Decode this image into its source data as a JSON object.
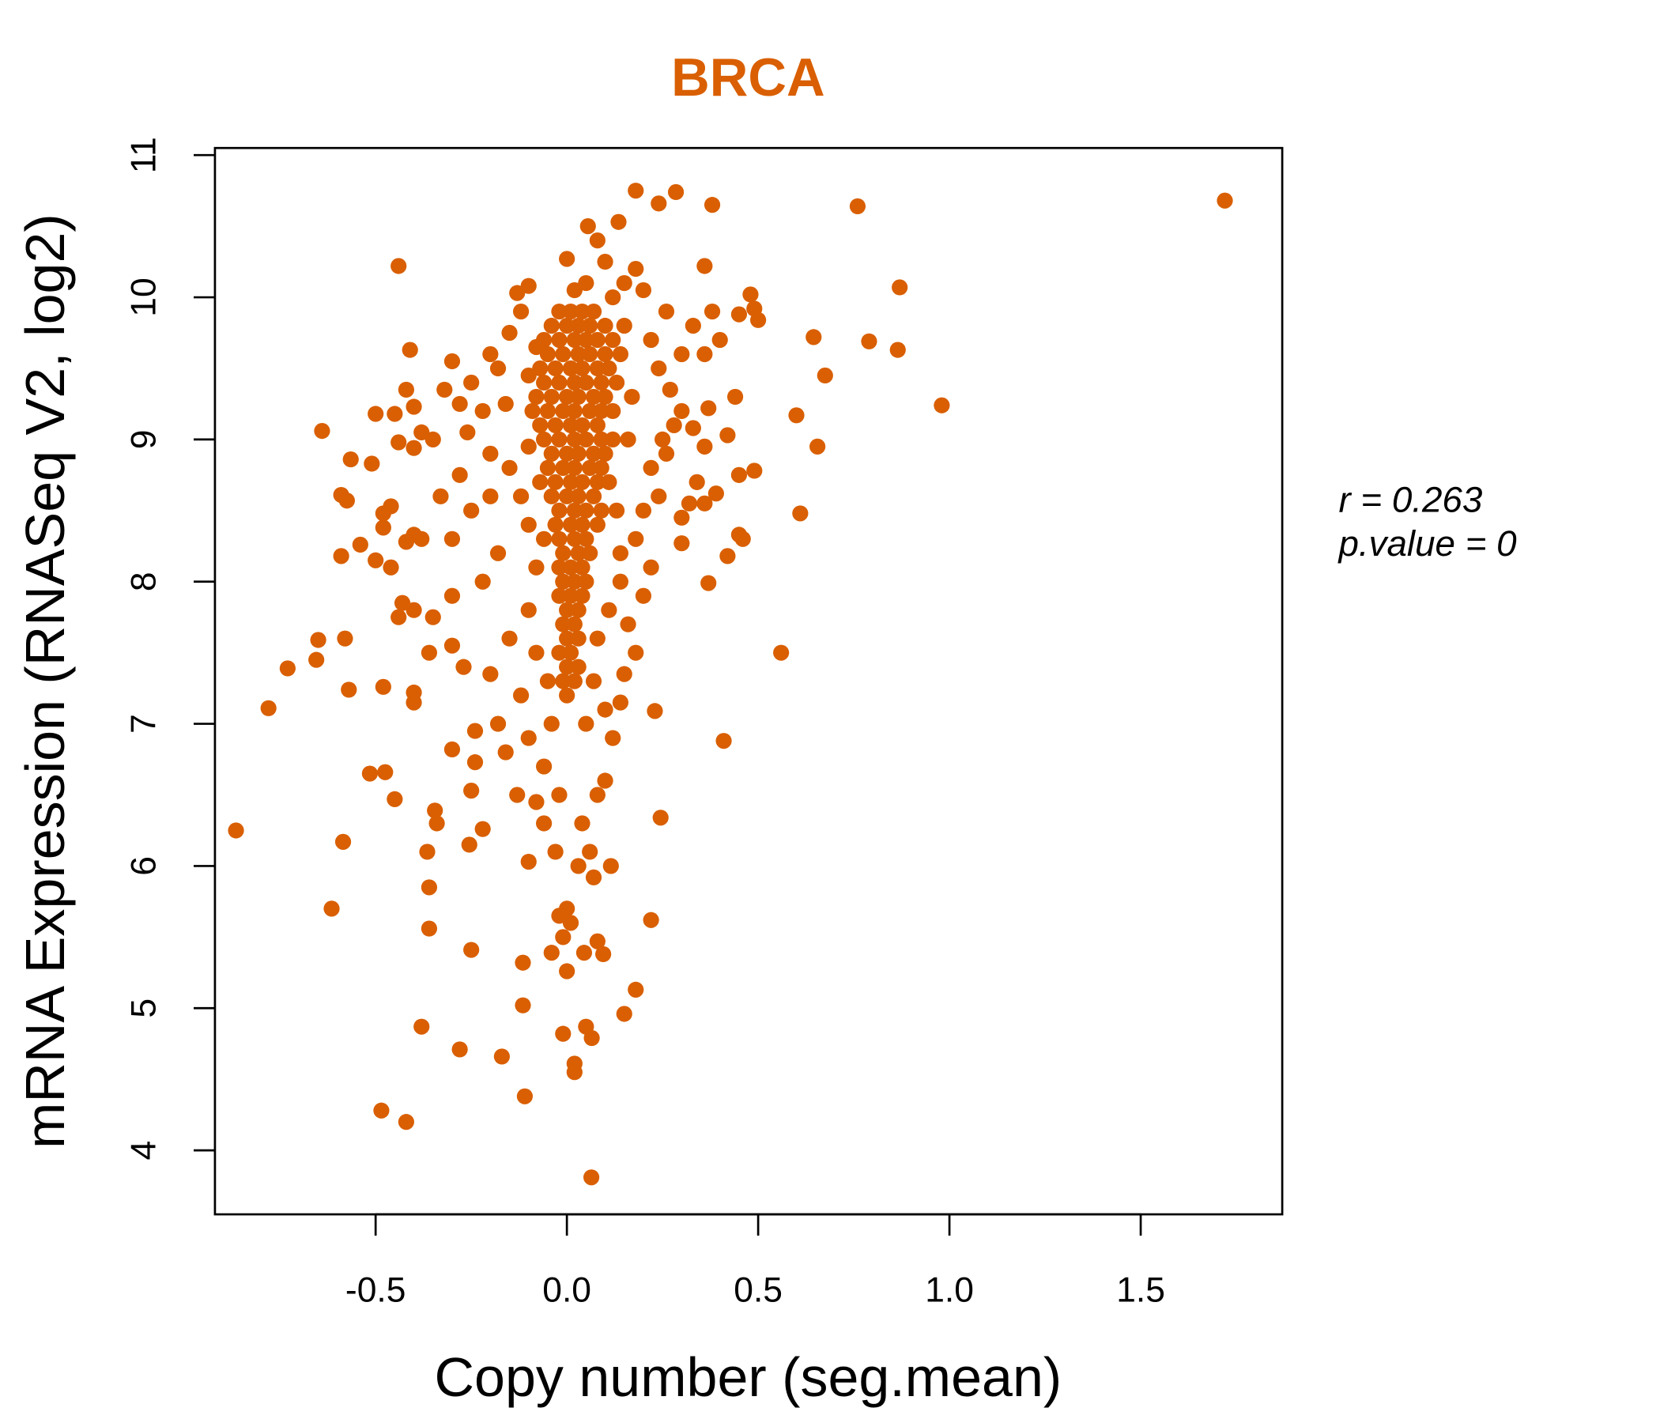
{
  "chart_data": {
    "type": "scatter",
    "title": "BRCA",
    "xlabel": "Copy number (seg.mean)",
    "ylabel": "mRNA Expression (RNASeq V2, log2)",
    "xlim": [
      -0.92,
      1.87
    ],
    "ylim": [
      3.55,
      11.05
    ],
    "x_ticks": [
      "-0.5",
      "0.0",
      "0.5",
      "1.0",
      "1.5"
    ],
    "x_tick_values": [
      -0.5,
      0,
      0.5,
      1.0,
      1.5
    ],
    "y_ticks": [
      "4",
      "5",
      "6",
      "7",
      "8",
      "9",
      "10",
      "11"
    ],
    "y_tick_values": [
      4,
      5,
      6,
      7,
      8,
      9,
      10,
      11
    ],
    "color": "#D95F02",
    "annotations": {
      "r": "r = 0.263",
      "p": "p.value = 0"
    },
    "points": [
      [
        1.72,
        10.68
      ],
      [
        -0.865,
        6.25
      ],
      [
        -0.78,
        7.11
      ],
      [
        -0.73,
        7.39
      ],
      [
        -0.65,
        7.59
      ],
      [
        -0.655,
        7.45
      ],
      [
        -0.64,
        9.06
      ],
      [
        -0.615,
        5.7
      ],
      [
        -0.585,
        6.17
      ],
      [
        -0.59,
        8.18
      ],
      [
        -0.58,
        7.6
      ],
      [
        -0.57,
        7.24
      ],
      [
        -0.565,
        8.86
      ],
      [
        -0.59,
        8.61
      ],
      [
        -0.575,
        8.57
      ],
      [
        -0.54,
        8.26
      ],
      [
        -0.515,
        6.65
      ],
      [
        -0.51,
        8.83
      ],
      [
        -0.485,
        4.28
      ],
      [
        -0.48,
        7.26
      ],
      [
        -0.475,
        6.66
      ],
      [
        -0.45,
        6.47
      ],
      [
        -0.44,
        10.22
      ],
      [
        -0.42,
        4.2
      ],
      [
        -0.41,
        9.63
      ],
      [
        -0.38,
        4.87
      ],
      [
        -0.365,
        6.1
      ],
      [
        -0.36,
        5.85
      ],
      [
        -0.36,
        5.56
      ],
      [
        -0.345,
        6.39
      ],
      [
        -0.34,
        6.3
      ],
      [
        -0.28,
        4.71
      ],
      [
        -0.25,
        5.41
      ],
      [
        -0.25,
        6.53
      ],
      [
        -0.255,
        6.15
      ],
      [
        -0.22,
        6.26
      ],
      [
        -0.17,
        4.66
      ],
      [
        -0.115,
        5.32
      ],
      [
        -0.115,
        5.02
      ],
      [
        -0.11,
        4.38
      ],
      [
        -0.1,
        6.03
      ],
      [
        -0.01,
        4.82
      ],
      [
        0.0,
        5.26
      ],
      [
        0.02,
        4.55
      ],
      [
        0.02,
        4.61
      ],
      [
        0.05,
        4.87
      ],
      [
        0.065,
        4.79
      ],
      [
        0.064,
        3.81
      ],
      [
        -0.04,
        5.39
      ],
      [
        -0.01,
        5.5
      ],
      [
        0.045,
        5.39
      ],
      [
        0.08,
        5.47
      ],
      [
        0.095,
        5.38
      ],
      [
        0.15,
        4.96
      ],
      [
        0.18,
        5.13
      ],
      [
        0.22,
        5.62
      ],
      [
        0.07,
        5.92
      ],
      [
        0.115,
        6.0
      ],
      [
        0.245,
        6.34
      ],
      [
        0.23,
        7.09
      ],
      [
        0.41,
        6.88
      ],
      [
        0.56,
        7.5
      ],
      [
        0.37,
        7.99
      ],
      [
        0.61,
        8.48
      ],
      [
        0.645,
        9.72
      ],
      [
        0.79,
        9.69
      ],
      [
        0.675,
        9.45
      ],
      [
        0.6,
        9.17
      ],
      [
        0.655,
        8.95
      ],
      [
        0.865,
        9.63
      ],
      [
        0.87,
        10.07
      ],
      [
        0.98,
        9.24
      ],
      [
        0.76,
        10.64
      ],
      [
        0.38,
        10.65
      ],
      [
        0.285,
        10.74
      ],
      [
        0.24,
        10.66
      ],
      [
        0.18,
        10.75
      ],
      [
        0.135,
        10.53
      ],
      [
        0.055,
        10.5
      ],
      [
        0.0,
        10.27
      ],
      [
        0.48,
        10.02
      ],
      [
        -0.02,
        9.9
      ],
      [
        0.01,
        9.9
      ],
      [
        0.04,
        9.9
      ],
      [
        0.07,
        9.9
      ],
      [
        -0.04,
        9.8
      ],
      [
        0.0,
        9.8
      ],
      [
        0.03,
        9.8
      ],
      [
        0.06,
        9.8
      ],
      [
        0.1,
        9.8
      ],
      [
        -0.06,
        9.7
      ],
      [
        -0.02,
        9.7
      ],
      [
        0.02,
        9.7
      ],
      [
        0.05,
        9.7
      ],
      [
        0.08,
        9.7
      ],
      [
        0.12,
        9.7
      ],
      [
        -0.05,
        9.6
      ],
      [
        -0.01,
        9.6
      ],
      [
        0.03,
        9.6
      ],
      [
        0.06,
        9.6
      ],
      [
        0.1,
        9.6
      ],
      [
        0.14,
        9.6
      ],
      [
        -0.07,
        9.5
      ],
      [
        -0.03,
        9.5
      ],
      [
        0.01,
        9.5
      ],
      [
        0.04,
        9.5
      ],
      [
        0.08,
        9.5
      ],
      [
        0.11,
        9.5
      ],
      [
        -0.06,
        9.4
      ],
      [
        -0.02,
        9.4
      ],
      [
        0.02,
        9.4
      ],
      [
        0.05,
        9.4
      ],
      [
        0.09,
        9.4
      ],
      [
        0.13,
        9.4
      ],
      [
        -0.08,
        9.3
      ],
      [
        -0.04,
        9.3
      ],
      [
        0.0,
        9.3
      ],
      [
        0.03,
        9.3
      ],
      [
        0.07,
        9.3
      ],
      [
        0.1,
        9.3
      ],
      [
        -0.05,
        9.2
      ],
      [
        -0.01,
        9.2
      ],
      [
        0.02,
        9.2
      ],
      [
        0.06,
        9.2
      ],
      [
        0.09,
        9.2
      ],
      [
        0.12,
        9.2
      ],
      [
        -0.07,
        9.1
      ],
      [
        -0.03,
        9.1
      ],
      [
        0.01,
        9.1
      ],
      [
        0.04,
        9.1
      ],
      [
        0.08,
        9.1
      ],
      [
        -0.06,
        9.0
      ],
      [
        -0.02,
        9.0
      ],
      [
        0.02,
        9.0
      ],
      [
        0.05,
        9.0
      ],
      [
        0.09,
        9.0
      ],
      [
        0.12,
        9.0
      ],
      [
        -0.04,
        8.9
      ],
      [
        0.0,
        8.9
      ],
      [
        0.03,
        8.9
      ],
      [
        0.07,
        8.9
      ],
      [
        0.1,
        8.9
      ],
      [
        -0.05,
        8.8
      ],
      [
        -0.01,
        8.8
      ],
      [
        0.02,
        8.8
      ],
      [
        0.06,
        8.8
      ],
      [
        0.09,
        8.8
      ],
      [
        -0.03,
        8.7
      ],
      [
        0.01,
        8.7
      ],
      [
        0.04,
        8.7
      ],
      [
        0.08,
        8.7
      ],
      [
        0.11,
        8.7
      ],
      [
        -0.04,
        8.6
      ],
      [
        0.0,
        8.6
      ],
      [
        0.03,
        8.6
      ],
      [
        0.07,
        8.6
      ],
      [
        -0.02,
        8.5
      ],
      [
        0.02,
        8.5
      ],
      [
        0.05,
        8.5
      ],
      [
        0.09,
        8.5
      ],
      [
        -0.03,
        8.4
      ],
      [
        0.01,
        8.4
      ],
      [
        0.04,
        8.4
      ],
      [
        0.08,
        8.4
      ],
      [
        -0.02,
        8.3
      ],
      [
        0.02,
        8.3
      ],
      [
        0.05,
        8.3
      ],
      [
        -0.01,
        8.2
      ],
      [
        0.03,
        8.2
      ],
      [
        0.06,
        8.2
      ],
      [
        -0.02,
        8.1
      ],
      [
        0.01,
        8.1
      ],
      [
        0.04,
        8.1
      ],
      [
        -0.01,
        8.0
      ],
      [
        0.02,
        8.0
      ],
      [
        0.05,
        8.0
      ],
      [
        -0.02,
        7.9
      ],
      [
        0.01,
        7.9
      ],
      [
        0.04,
        7.9
      ],
      [
        0.0,
        7.8
      ],
      [
        0.03,
        7.8
      ],
      [
        -0.01,
        7.7
      ],
      [
        0.02,
        7.7
      ],
      [
        0.0,
        7.6
      ],
      [
        0.03,
        7.6
      ],
      [
        -0.02,
        7.5
      ],
      [
        0.01,
        7.5
      ],
      [
        0.0,
        7.4
      ],
      [
        0.03,
        7.4
      ],
      [
        -0.01,
        7.3
      ],
      [
        0.02,
        7.3
      ],
      [
        0.0,
        7.2
      ],
      [
        -0.3,
        9.55
      ],
      [
        -0.32,
        9.35
      ],
      [
        -0.35,
        9.0
      ],
      [
        -0.25,
        9.4
      ],
      [
        -0.22,
        9.2
      ],
      [
        -0.18,
        9.5
      ],
      [
        -0.15,
        9.75
      ],
      [
        -0.13,
        10.03
      ],
      [
        -0.1,
        10.08
      ],
      [
        -0.12,
        9.9
      ],
      [
        -0.08,
        9.65
      ],
      [
        -0.2,
        8.9
      ],
      [
        -0.28,
        8.75
      ],
      [
        -0.33,
        8.6
      ],
      [
        -0.38,
        8.3
      ],
      [
        -0.3,
        8.3
      ],
      [
        -0.25,
        8.5
      ],
      [
        -0.2,
        8.6
      ],
      [
        -0.15,
        8.8
      ],
      [
        -0.1,
        8.95
      ],
      [
        -0.12,
        8.6
      ],
      [
        -0.18,
        8.2
      ],
      [
        -0.22,
        8.0
      ],
      [
        -0.3,
        7.9
      ],
      [
        -0.35,
        7.75
      ],
      [
        -0.4,
        7.8
      ],
      [
        -0.36,
        7.5
      ],
      [
        -0.3,
        7.55
      ],
      [
        -0.27,
        7.4
      ],
      [
        -0.2,
        7.35
      ],
      [
        -0.15,
        7.6
      ],
      [
        -0.1,
        7.8
      ],
      [
        -0.08,
        7.5
      ],
      [
        -0.12,
        7.2
      ],
      [
        -0.18,
        7.0
      ],
      [
        -0.24,
        6.95
      ],
      [
        -0.16,
        6.8
      ],
      [
        -0.1,
        6.9
      ],
      [
        -0.06,
        6.7
      ],
      [
        -0.13,
        6.5
      ],
      [
        -0.08,
        6.45
      ],
      [
        -0.06,
        6.3
      ],
      [
        -0.02,
        6.5
      ],
      [
        -0.03,
        6.1
      ],
      [
        0.0,
        5.7
      ],
      [
        -0.02,
        5.65
      ],
      [
        0.01,
        5.6
      ],
      [
        0.03,
        6.0
      ],
      [
        0.06,
        6.1
      ],
      [
        0.04,
        6.3
      ],
      [
        0.08,
        6.5
      ],
      [
        0.1,
        6.6
      ],
      [
        0.12,
        6.9
      ],
      [
        0.1,
        7.1
      ],
      [
        0.14,
        7.15
      ],
      [
        0.15,
        7.35
      ],
      [
        0.18,
        7.5
      ],
      [
        0.16,
        7.7
      ],
      [
        0.2,
        7.9
      ],
      [
        0.22,
        8.1
      ],
      [
        0.18,
        8.3
      ],
      [
        0.2,
        8.5
      ],
      [
        0.24,
        8.6
      ],
      [
        0.22,
        8.8
      ],
      [
        0.25,
        9.0
      ],
      [
        0.28,
        9.1
      ],
      [
        0.3,
        9.2
      ],
      [
        0.27,
        9.35
      ],
      [
        0.24,
        9.5
      ],
      [
        0.22,
        9.7
      ],
      [
        0.26,
        9.9
      ],
      [
        0.2,
        10.05
      ],
      [
        0.18,
        10.2
      ],
      [
        0.15,
        10.1
      ],
      [
        0.12,
        10.0
      ],
      [
        0.1,
        10.25
      ],
      [
        0.08,
        10.4
      ],
      [
        0.05,
        10.1
      ],
      [
        0.02,
        10.05
      ],
      [
        0.3,
        9.6
      ],
      [
        0.33,
        9.8
      ],
      [
        0.36,
        9.6
      ],
      [
        0.38,
        9.9
      ],
      [
        0.4,
        9.7
      ],
      [
        0.36,
        10.22
      ],
      [
        0.45,
        9.88
      ],
      [
        0.49,
        9.92
      ],
      [
        0.5,
        9.84
      ],
      [
        0.44,
        9.3
      ],
      [
        0.42,
        9.03
      ],
      [
        0.36,
        8.95
      ],
      [
        0.34,
        8.7
      ],
      [
        0.39,
        8.62
      ],
      [
        0.45,
        8.75
      ],
      [
        0.49,
        8.78
      ],
      [
        0.45,
        8.33
      ],
      [
        0.46,
        8.3
      ],
      [
        0.42,
        8.18
      ],
      [
        0.3,
        8.27
      ],
      [
        0.32,
        8.55
      ],
      [
        0.36,
        8.55
      ],
      [
        0.3,
        8.45
      ],
      [
        0.26,
        8.9
      ],
      [
        0.33,
        9.08
      ],
      [
        0.37,
        9.22
      ],
      [
        -0.45,
        9.18
      ],
      [
        -0.5,
        9.18
      ],
      [
        -0.4,
        9.23
      ],
      [
        -0.42,
        9.35
      ],
      [
        -0.38,
        9.05
      ],
      [
        -0.44,
        8.98
      ],
      [
        -0.4,
        8.94
      ],
      [
        -0.46,
        8.53
      ],
      [
        -0.48,
        8.48
      ],
      [
        -0.48,
        8.38
      ],
      [
        -0.4,
        8.33
      ],
      [
        -0.42,
        8.28
      ],
      [
        -0.46,
        8.1
      ],
      [
        -0.5,
        8.15
      ],
      [
        -0.43,
        7.85
      ],
      [
        -0.44,
        7.75
      ],
      [
        -0.4,
        7.22
      ],
      [
        -0.4,
        7.15
      ],
      [
        -0.3,
        6.82
      ],
      [
        -0.24,
        6.73
      ],
      [
        -0.06,
        8.3
      ],
      [
        -0.08,
        8.1
      ],
      [
        -0.1,
        8.4
      ],
      [
        -0.07,
        8.7
      ],
      [
        -0.09,
        9.2
      ],
      [
        0.14,
        8.2
      ],
      [
        0.13,
        8.5
      ],
      [
        0.14,
        8.0
      ],
      [
        0.11,
        7.8
      ],
      [
        0.08,
        7.6
      ],
      [
        0.07,
        7.3
      ],
      [
        0.05,
        7.0
      ],
      [
        -0.04,
        7.0
      ],
      [
        -0.05,
        7.3
      ],
      [
        0.16,
        9.0
      ],
      [
        0.17,
        9.3
      ],
      [
        0.15,
        9.8
      ],
      [
        -0.1,
        9.45
      ],
      [
        -0.16,
        9.25
      ],
      [
        -0.2,
        9.6
      ],
      [
        -0.28,
        9.25
      ],
      [
        -0.26,
        9.05
      ]
    ]
  }
}
